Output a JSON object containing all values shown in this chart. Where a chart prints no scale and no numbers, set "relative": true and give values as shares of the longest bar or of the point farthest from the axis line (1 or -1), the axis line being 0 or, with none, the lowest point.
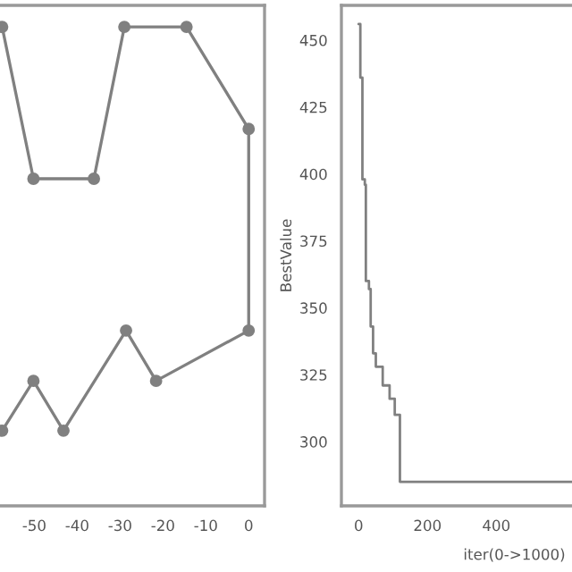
{
  "chart_data": [
    {
      "type": "line",
      "relative": true,
      "x": [
        -57.5,
        -50.2,
        -36.1,
        -29,
        -14.5,
        0,
        0,
        -21.6,
        -28.6,
        -43.2,
        -50.2,
        -57.5
      ],
      "series": [
        {
          "color": "#808080",
          "values": [
            1.0,
            0.683,
            0.683,
            1.0,
            1.0,
            0.787,
            0.366,
            0.261,
            0.366,
            0.157,
            0.261,
            0.157
          ]
        }
      ],
      "xlim": [
        -58,
        3.7
      ],
      "xticks": [
        -50,
        -40,
        -30,
        -20,
        -10,
        0
      ],
      "marker": "circle",
      "tick_labels": "x",
      "grid": false
    },
    {
      "type": "step",
      "xlabel": "iter(0->1000)",
      "ylabel": "BestValue",
      "x": [
        0,
        5,
        11,
        18,
        21,
        30,
        35,
        42,
        50,
        70,
        90,
        105,
        120,
        620
      ],
      "series": [
        {
          "color": "#808080",
          "values": [
            456,
            436,
            398,
            396,
            360,
            357,
            343,
            333,
            328,
            321,
            316,
            310,
            285,
            285
          ]
        }
      ],
      "xlim": [
        -50,
        620
      ],
      "ylim": [
        276,
        463
      ],
      "xticks": [
        0,
        200,
        400
      ],
      "yticks": [
        300,
        325,
        350,
        375,
        400,
        425,
        450
      ],
      "grid": false
    }
  ]
}
